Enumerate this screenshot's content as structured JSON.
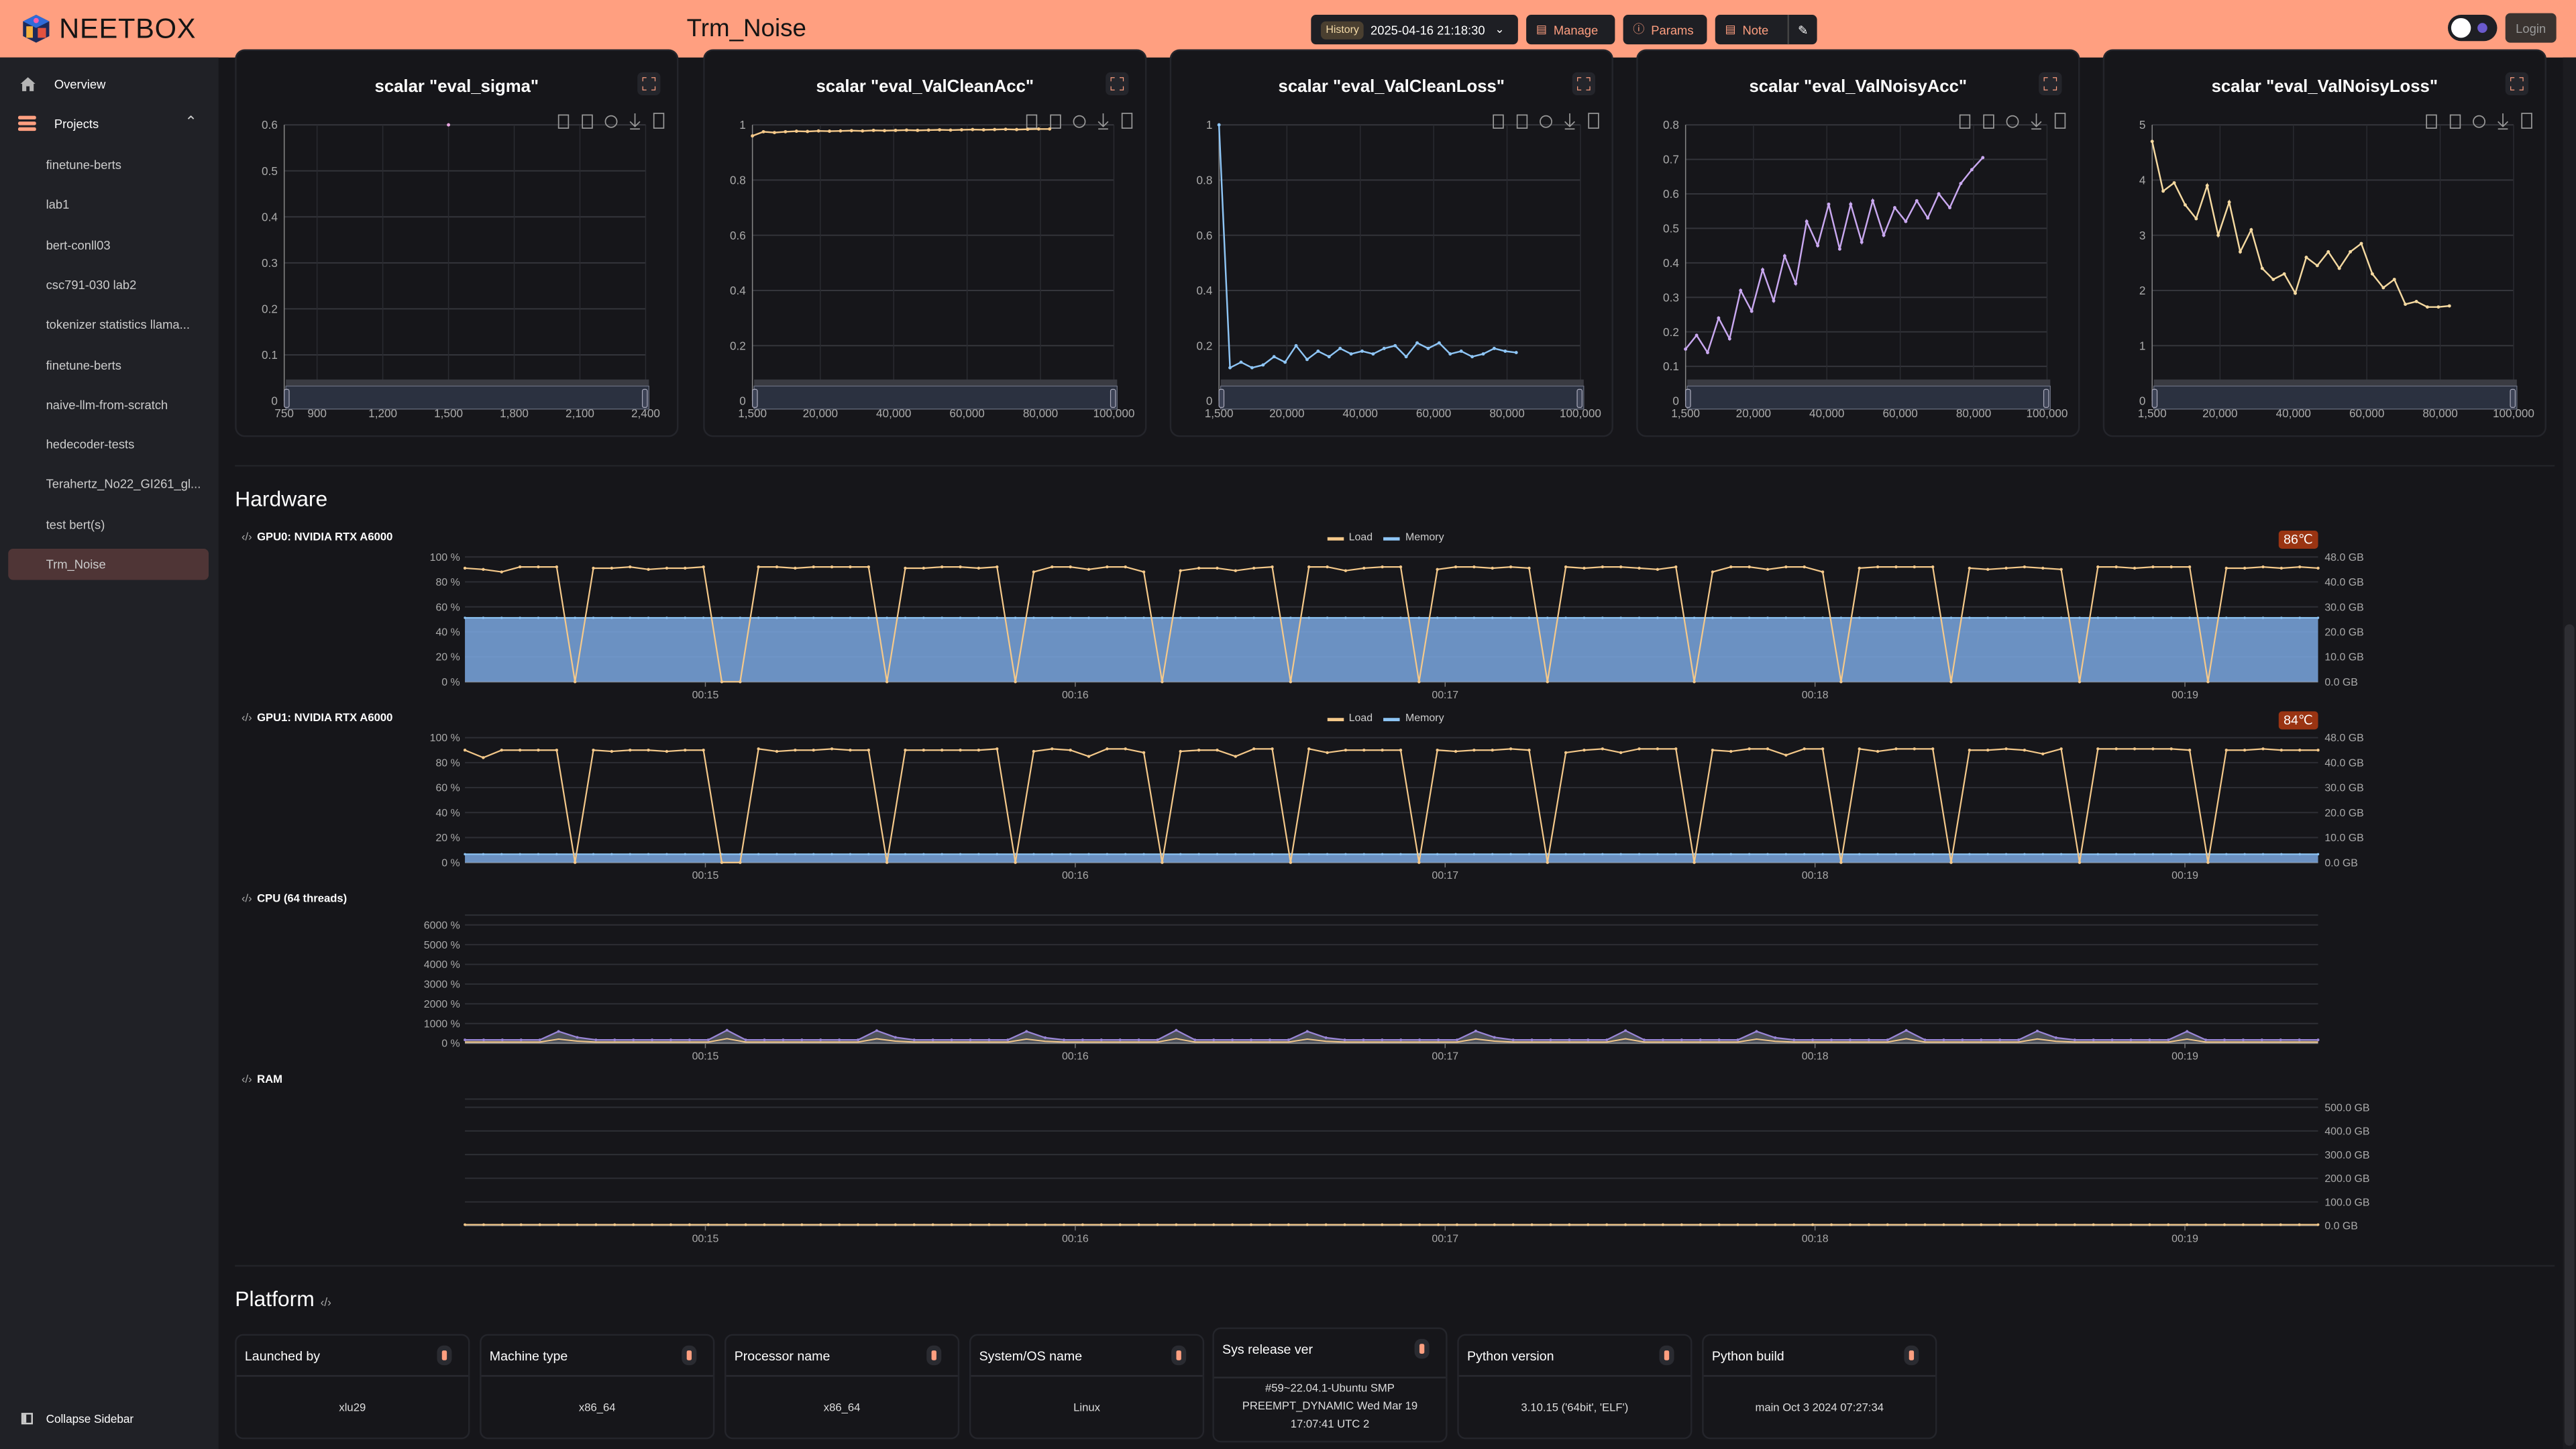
{
  "app": {
    "name": "NEETBOX",
    "title": "Trm_Noise"
  },
  "header": {
    "history_label": "History",
    "history_value": "2025-04-16 21:18:30",
    "manage_label": "Manage",
    "params_label": "Params",
    "note_label": "Note",
    "login_label": "Login",
    "accent": "#ff9f80"
  },
  "sidebar": {
    "overview": "Overview",
    "projects": "Projects",
    "items": [
      "finetune-berts",
      "lab1",
      "bert-conll03",
      "csc791-030 lab2",
      "tokenizer statistics llama...",
      "finetune-berts",
      "naive-llm-from-scratch",
      "hedecoder-tests",
      "Terahertz_No22_GI261_gl...",
      "test bert(s)",
      "Trm_Noise"
    ],
    "active": "Trm_Noise",
    "collapse": "Collapse Sidebar"
  },
  "chart_data": [
    {
      "type": "line",
      "title": "scalar \"eval_sigma\"",
      "color": "#e9a6e0",
      "xlim": [
        750,
        2400
      ],
      "xticks": [
        750,
        900,
        1200,
        1500,
        1800,
        2100,
        2400
      ],
      "xticklabels": [
        "750",
        "900",
        "1,200",
        "1,500",
        "1,800",
        "2,100",
        "2,400"
      ],
      "ylim": [
        0,
        0.6
      ],
      "yticks": [
        0,
        0.1,
        0.2,
        0.3,
        0.4,
        0.5,
        0.6
      ],
      "x": [
        1500
      ],
      "y": [
        0.6
      ]
    },
    {
      "type": "line",
      "title": "scalar \"eval_ValCleanAcc\"",
      "color": "#f5c98a",
      "xlim": [
        1500,
        100000
      ],
      "xticks": [
        1500,
        20000,
        40000,
        60000,
        80000,
        100000
      ],
      "xticklabels": [
        "1,500",
        "20,000",
        "40,000",
        "60,000",
        "80,000",
        "100,000"
      ],
      "ylim": [
        0,
        1
      ],
      "yticks": [
        0,
        0.2,
        0.4,
        0.6,
        0.8,
        1
      ],
      "x": [
        1500,
        4500,
        7500,
        10500,
        13500,
        16500,
        19500,
        22500,
        25500,
        28500,
        31500,
        34500,
        37500,
        40500,
        43500,
        46500,
        49500,
        52500,
        55500,
        58500,
        61500,
        64500,
        67500,
        70500,
        73500,
        76500,
        79500,
        82500
      ],
      "y": [
        0.96,
        0.975,
        0.972,
        0.975,
        0.977,
        0.976,
        0.978,
        0.977,
        0.978,
        0.979,
        0.978,
        0.98,
        0.979,
        0.98,
        0.981,
        0.98,
        0.981,
        0.982,
        0.981,
        0.982,
        0.983,
        0.982,
        0.983,
        0.984,
        0.983,
        0.984,
        0.985,
        0.985
      ]
    },
    {
      "type": "line",
      "title": "scalar \"eval_ValCleanLoss\"",
      "color": "#8ec5f5",
      "xlim": [
        1500,
        100000
      ],
      "xticks": [
        1500,
        20000,
        40000,
        60000,
        80000,
        100000
      ],
      "xticklabels": [
        "1,500",
        "20,000",
        "40,000",
        "60,000",
        "80,000",
        "100,000"
      ],
      "ylim": [
        0,
        1
      ],
      "yticks": [
        0,
        0.2,
        0.4,
        0.6,
        0.8,
        1
      ],
      "x": [
        1500,
        4500,
        7500,
        10500,
        13500,
        16500,
        19500,
        22500,
        25500,
        28500,
        31500,
        34500,
        37500,
        40500,
        43500,
        46500,
        49500,
        52500,
        55500,
        58500,
        61500,
        64500,
        67500,
        70500,
        73500,
        76500,
        79500,
        82500
      ],
      "y": [
        1.0,
        0.12,
        0.14,
        0.12,
        0.13,
        0.16,
        0.14,
        0.2,
        0.15,
        0.18,
        0.16,
        0.19,
        0.17,
        0.18,
        0.17,
        0.19,
        0.2,
        0.16,
        0.21,
        0.19,
        0.21,
        0.17,
        0.18,
        0.16,
        0.17,
        0.19,
        0.18,
        0.175
      ]
    },
    {
      "type": "line",
      "title": "scalar \"eval_ValNoisyAcc\"",
      "color": "#c9a8f0",
      "xlim": [
        1500,
        100000
      ],
      "xticks": [
        1500,
        20000,
        40000,
        60000,
        80000,
        100000
      ],
      "xticklabels": [
        "1,500",
        "20,000",
        "40,000",
        "60,000",
        "80,000",
        "100,000"
      ],
      "ylim": [
        0,
        0.8
      ],
      "yticks": [
        0,
        0.1,
        0.2,
        0.3,
        0.4,
        0.5,
        0.6,
        0.7,
        0.8
      ],
      "x": [
        1500,
        4500,
        7500,
        10500,
        13500,
        16500,
        19500,
        22500,
        25500,
        28500,
        31500,
        34500,
        37500,
        40500,
        43500,
        46500,
        49500,
        52500,
        55500,
        58500,
        61500,
        64500,
        67500,
        70500,
        73500,
        76500,
        79500,
        82500
      ],
      "y": [
        0.15,
        0.19,
        0.14,
        0.24,
        0.18,
        0.32,
        0.26,
        0.38,
        0.29,
        0.42,
        0.34,
        0.52,
        0.45,
        0.57,
        0.44,
        0.57,
        0.46,
        0.58,
        0.48,
        0.56,
        0.52,
        0.58,
        0.53,
        0.6,
        0.56,
        0.63,
        0.67,
        0.705
      ]
    },
    {
      "type": "line",
      "title": "scalar \"eval_ValNoisyLoss\"",
      "color": "#f5d9a0",
      "xlim": [
        1500,
        100000
      ],
      "xticks": [
        1500,
        20000,
        40000,
        60000,
        80000,
        100000
      ],
      "xticklabels": [
        "1,500",
        "20,000",
        "40,000",
        "60,000",
        "80,000",
        "100,000"
      ],
      "ylim": [
        0,
        5
      ],
      "yticks": [
        0,
        1,
        2,
        3,
        4,
        5
      ],
      "x": [
        1500,
        4500,
        7500,
        10500,
        13500,
        16500,
        19500,
        22500,
        25500,
        28500,
        31500,
        34500,
        37500,
        40500,
        43500,
        46500,
        49500,
        52500,
        55500,
        58500,
        61500,
        64500,
        67500,
        70500,
        73500,
        76500,
        79500,
        82500
      ],
      "y": [
        4.7,
        3.8,
        3.95,
        3.55,
        3.3,
        3.9,
        3.0,
        3.6,
        2.7,
        3.1,
        2.4,
        2.2,
        2.3,
        1.95,
        2.6,
        2.45,
        2.7,
        2.4,
        2.7,
        2.85,
        2.3,
        2.05,
        2.2,
        1.75,
        1.8,
        1.7,
        1.7,
        1.72
      ]
    }
  ],
  "hardware": {
    "title": "Hardware",
    "legend": {
      "load": "Load",
      "memory": "Memory",
      "load_color": "#f5c98a",
      "memory_color": "#8ec5f5"
    },
    "time_range_min": [
      14.35,
      19.36
    ],
    "time_ticks": [
      "00:15",
      "00:16",
      "00:17",
      "00:18",
      "00:19"
    ],
    "gpus": [
      {
        "label": "GPU0: NVIDIA RTX A6000",
        "temp": "86℃",
        "memory_gb": 24.6,
        "memory_max_gb": 48,
        "left_ticks": [
          "0 %",
          "20 %",
          "40 %",
          "60 %",
          "80 %",
          "100 %"
        ],
        "right_ticks": [
          "0.0 GB",
          "10.0 GB",
          "20.0 GB",
          "30.0 GB",
          "40.0 GB",
          "48.0 GB"
        ],
        "load": [
          91,
          90,
          88,
          92,
          92,
          92,
          0,
          91,
          91,
          92,
          90,
          91,
          91,
          92,
          0,
          0,
          92,
          92,
          91,
          92,
          92,
          92,
          92,
          0,
          91,
          91,
          92,
          92,
          91,
          92,
          0,
          88,
          92,
          92,
          90,
          92,
          92,
          88,
          0,
          89,
          91,
          91,
          89,
          91,
          92,
          0,
          92,
          92,
          89,
          91,
          92,
          92,
          0,
          90,
          92,
          92,
          91,
          92,
          91,
          0,
          92,
          91,
          92,
          92,
          91,
          90,
          92,
          0,
          88,
          92,
          92,
          90,
          92,
          92,
          88,
          0,
          91,
          92,
          92,
          92,
          92,
          0,
          91,
          90,
          91,
          92,
          91,
          90,
          0,
          92,
          92,
          91,
          92,
          92,
          92,
          0,
          91,
          91,
          92,
          91,
          92,
          91
        ]
      },
      {
        "label": "GPU1: NVIDIA RTX A6000",
        "temp": "84℃",
        "memory_gb": 3.2,
        "memory_max_gb": 48,
        "left_ticks": [
          "0 %",
          "20 %",
          "40 %",
          "60 %",
          "80 %",
          "100 %"
        ],
        "right_ticks": [
          "0.0 GB",
          "10.0 GB",
          "20.0 GB",
          "30.0 GB",
          "40.0 GB",
          "48.0 GB"
        ],
        "load": [
          90,
          84,
          90,
          90,
          90,
          90,
          0,
          90,
          89,
          90,
          90,
          89,
          90,
          90,
          0,
          0,
          91,
          89,
          90,
          90,
          91,
          90,
          90,
          0,
          90,
          90,
          90,
          90,
          90,
          91,
          0,
          89,
          91,
          90,
          85,
          91,
          91,
          88,
          0,
          89,
          90,
          90,
          85,
          91,
          91,
          0,
          91,
          88,
          90,
          90,
          90,
          90,
          0,
          90,
          89,
          90,
          90,
          91,
          90,
          0,
          88,
          90,
          91,
          88,
          91,
          91,
          91,
          0,
          90,
          89,
          91,
          91,
          86,
          91,
          91,
          0,
          91,
          89,
          91,
          91,
          91,
          0,
          90,
          90,
          91,
          90,
          87,
          91,
          0,
          91,
          91,
          91,
          91,
          91,
          90,
          0,
          90,
          90,
          91,
          90,
          90,
          90
        ]
      }
    ],
    "cpu": {
      "label": "CPU (64 threads)",
      "left_ticks": [
        "0 %",
        "1000 %",
        "2000 %",
        "3000 %",
        "4000 %",
        "5000 %",
        "6000 %"
      ],
      "total": [
        170,
        170,
        170,
        170,
        170,
        600,
        300,
        170,
        170,
        170,
        170,
        170,
        170,
        170,
        660,
        170,
        170,
        170,
        170,
        170,
        170,
        170,
        640,
        300,
        170,
        170,
        170,
        170,
        170,
        170,
        600,
        280,
        170,
        170,
        170,
        170,
        170,
        170,
        660,
        170,
        170,
        170,
        170,
        170,
        170,
        600,
        280,
        170,
        170,
        170,
        170,
        170,
        170,
        170,
        620,
        300,
        170,
        170,
        170,
        170,
        170,
        170,
        640,
        170,
        170,
        170,
        170,
        170,
        170,
        600,
        280,
        170,
        170,
        170,
        170,
        170,
        170,
        650,
        170,
        170,
        170,
        170,
        170,
        170,
        620,
        280,
        170,
        170,
        170,
        170,
        170,
        170,
        600,
        170,
        170,
        170,
        170,
        170,
        170,
        170
      ]
    },
    "ram": {
      "label": "RAM",
      "right_ticks": [
        "0.0 GB",
        "100.0 GB",
        "200.0 GB",
        "300.0 GB",
        "400.0 GB",
        "500.0 GB"
      ],
      "used_gb": 4
    }
  },
  "platform": {
    "title": "Platform",
    "cards": [
      {
        "label": "Launched by",
        "value": "xlu29"
      },
      {
        "label": "Machine type",
        "value": "x86_64"
      },
      {
        "label": "Processor name",
        "value": "x86_64"
      },
      {
        "label": "System/OS name",
        "value": "Linux"
      },
      {
        "label": "Sys release ver",
        "value": "#59~22.04.1-Ubuntu SMP PREEMPT_DYNAMIC Wed Mar 19 17:07:41 UTC 2"
      },
      {
        "label": "Python version",
        "value": "3.10.15 ('64bit', 'ELF')"
      },
      {
        "label": "Python build",
        "value": "main Oct 3 2024 07:27:34"
      }
    ]
  }
}
